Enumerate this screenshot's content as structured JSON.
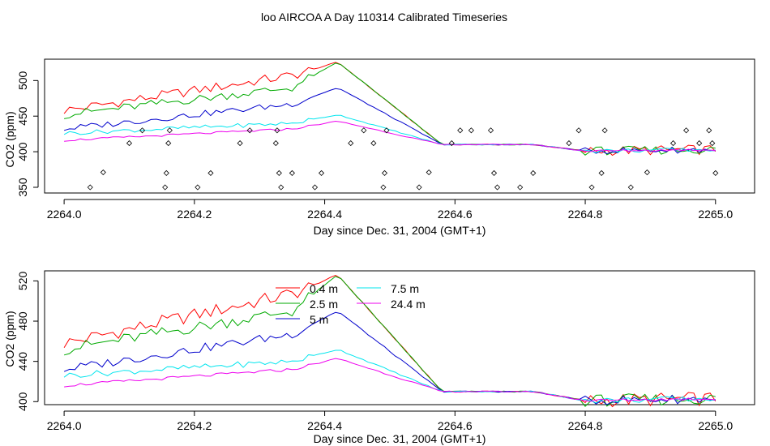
{
  "title": "loo AIRCOA A  Day 110314  Calibrated Timeseries",
  "chart_data": [
    {
      "type": "line",
      "xlabel": "Day since Dec. 31, 2004 (GMT+1)",
      "ylabel": "CO2 (ppm)",
      "xlim": [
        1.97,
        3.06
      ],
      "ylim": [
        342,
        530
      ],
      "x_offset": 2262,
      "x_ticks": [
        "2264.0",
        "2264.2",
        "2264.4",
        "2264.6",
        "2264.8",
        "2265.0"
      ],
      "y_ticks": [
        350,
        400,
        450,
        500
      ],
      "grid": false,
      "legend": "none",
      "x_breaks": [
        2.0,
        2.35,
        2.42,
        2.58,
        2.72,
        2.8,
        3.0
      ],
      "series": [
        {
          "color": "#ff0000",
          "keys": [
            458,
            507,
            526,
            410,
            410,
            401,
            403,
            407,
            442,
            447
          ]
        },
        {
          "color": "#00aa00",
          "keys": [
            452,
            490,
            526,
            410,
            410,
            401,
            403,
            407,
            430,
            425
          ]
        },
        {
          "color": "#0000cc",
          "keys": [
            432,
            467,
            490,
            410,
            410,
            401,
            403,
            407,
            422,
            417
          ]
        },
        {
          "color": "#00e5ee",
          "keys": [
            426,
            440,
            452,
            410,
            410,
            401,
            403,
            407,
            416,
            417
          ]
        },
        {
          "color": "#ee00ee",
          "keys": [
            416,
            432,
            443,
            410,
            410,
            401,
            403,
            407,
            414,
            416
          ]
        }
      ],
      "scatter": {
        "marker": "diamond",
        "x": [
          2.04,
          2.06,
          2.1,
          2.12,
          2.155,
          2.157,
          2.16,
          2.162,
          2.205,
          2.225,
          2.27,
          2.285,
          2.325,
          2.327,
          2.33,
          2.333,
          2.35,
          2.385,
          2.395,
          2.44,
          2.46,
          2.475,
          2.49,
          2.492,
          2.495,
          2.545,
          2.56,
          2.595,
          2.608,
          2.625,
          2.655,
          2.66,
          2.665,
          2.7,
          2.72,
          2.775,
          2.79,
          2.81,
          2.825,
          2.83,
          2.87,
          2.895,
          2.935,
          2.955,
          2.975,
          2.99,
          2.995,
          3.0
        ],
        "y": [
          350,
          371,
          412,
          430,
          350,
          370,
          412,
          430,
          350,
          370,
          412,
          430,
          412,
          430,
          370,
          350,
          370,
          350,
          370,
          412,
          430,
          412,
          350,
          370,
          430,
          350,
          371,
          412,
          430,
          430,
          430,
          370,
          350,
          350,
          370,
          412,
          430,
          350,
          370,
          430,
          350,
          371,
          412,
          430,
          412,
          430,
          412,
          370
        ]
      }
    },
    {
      "type": "line",
      "xlabel": "Day since Dec. 31, 2004 (GMT+1)",
      "ylabel": "CO2 (ppm)",
      "xlim": [
        1.97,
        3.06
      ],
      "ylim": [
        397,
        530
      ],
      "x_offset": 2262,
      "x_ticks": [
        "2264.0",
        "2264.2",
        "2264.4",
        "2264.6",
        "2264.8",
        "2265.0"
      ],
      "y_ticks": [
        400,
        440,
        480,
        520
      ],
      "grid": false,
      "legend": "top-center",
      "legend_entries": [
        {
          "label": "0.4 m",
          "color": "#ff0000"
        },
        {
          "label": "2.5 m",
          "color": "#00aa00"
        },
        {
          "label": "5 m",
          "color": "#0000cc"
        },
        {
          "label": "7.5 m",
          "color": "#00e5ee"
        },
        {
          "label": "24.4 m",
          "color": "#ee00ee"
        }
      ],
      "x_breaks": [
        2.0,
        2.35,
        2.42,
        2.58,
        2.72,
        2.8,
        3.0
      ],
      "series": [
        {
          "name": "0.4 m",
          "color": "#ff0000",
          "keys": [
            458,
            507,
            526,
            410,
            410,
            401,
            403,
            407,
            442,
            447
          ]
        },
        {
          "name": "2.5 m",
          "color": "#00aa00",
          "keys": [
            452,
            490,
            526,
            410,
            410,
            401,
            403,
            407,
            430,
            425
          ]
        },
        {
          "name": "5 m",
          "color": "#0000cc",
          "keys": [
            432,
            467,
            490,
            410,
            410,
            401,
            403,
            407,
            422,
            417
          ]
        },
        {
          "name": "7.5 m",
          "color": "#00e5ee",
          "keys": [
            426,
            440,
            452,
            410,
            410,
            401,
            403,
            407,
            416,
            417
          ]
        },
        {
          "name": "24.4 m",
          "color": "#ee00ee",
          "keys": [
            416,
            432,
            443,
            410,
            410,
            401,
            403,
            407,
            414,
            416
          ]
        }
      ]
    }
  ]
}
